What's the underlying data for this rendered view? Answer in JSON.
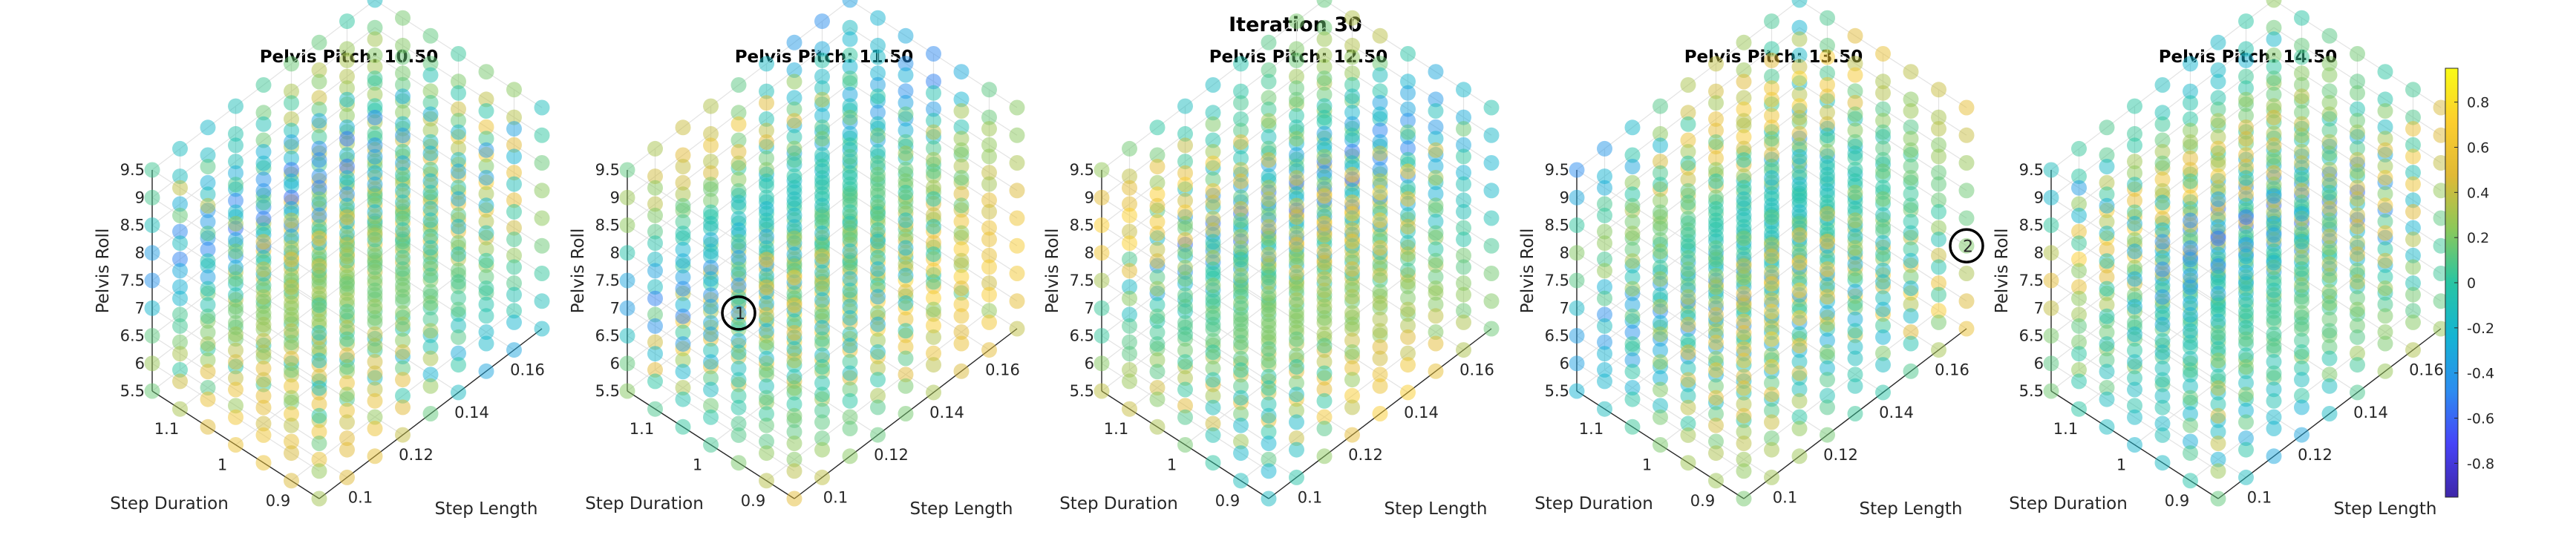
{
  "figure_title": "Iteration 30",
  "chart_data": {
    "type": "scatter",
    "subtitle_prefix": "Pelvis Pitch: ",
    "pelvis_pitch_values": [
      "10.50",
      "11.50",
      "12.50",
      "13.50",
      "14.50"
    ],
    "axes": {
      "x": {
        "label": "Step Length",
        "ticks": [
          "0.1",
          "0.12",
          "0.14",
          "0.16"
        ],
        "range": [
          0.09,
          0.17
        ]
      },
      "y": {
        "label": "Step Duration",
        "ticks": [
          "0.9",
          "1",
          "1.1"
        ],
        "range": [
          0.85,
          1.15
        ]
      },
      "z": {
        "label": "Pelvis Roll",
        "ticks": [
          "5.5",
          "6",
          "6.5",
          "7",
          "7.5",
          "8",
          "8.5",
          "9",
          "9.5"
        ],
        "range": [
          5.5,
          9.5
        ]
      }
    },
    "grid": {
      "step_length": [
        0.09,
        0.1,
        0.11,
        0.12,
        0.13,
        0.14,
        0.15,
        0.16,
        0.17
      ],
      "step_duration": [
        0.85,
        0.9,
        0.95,
        1.0,
        1.05,
        1.1,
        1.15
      ],
      "pelvis_roll": [
        5.5,
        6.0,
        6.5,
        7.0,
        7.5,
        8.0,
        8.5,
        9.0,
        9.5
      ]
    },
    "grid_lines": true,
    "colorbar": {
      "ticks": [
        "0.8",
        "0.6",
        "0.4",
        "0.2",
        "0",
        "-0.2",
        "-0.4",
        "-0.6",
        "-0.8"
      ],
      "range": [
        -0.95,
        0.95
      ],
      "colormap": [
        "#3e26a8",
        "#4743f8",
        "#2c8df0",
        "#14b4d3",
        "#28c5a3",
        "#8bc85a",
        "#e0b936",
        "#fcce2e",
        "#f9fb15"
      ]
    },
    "annotations": [
      {
        "text": "1",
        "panel": 1,
        "step_length": 0.1,
        "step_duration": 1.0,
        "pelvis_roll": 7.5
      },
      {
        "text": "2",
        "panel": 3,
        "step_length": 0.17,
        "step_duration": 0.85,
        "pelvis_roll": 7.0
      }
    ]
  }
}
